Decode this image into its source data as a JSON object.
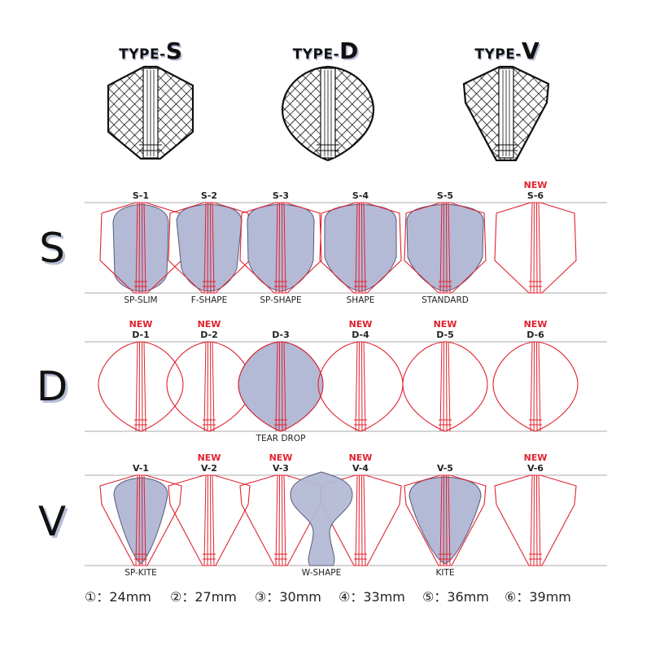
{
  "types": [
    {
      "prefix": "TYPE-",
      "letter": "S"
    },
    {
      "prefix": "TYPE-",
      "letter": "D"
    },
    {
      "prefix": "TYPE-",
      "letter": "V"
    }
  ],
  "rows": [
    {
      "letter": "S",
      "cells": [
        {
          "id": "S-1",
          "new": false,
          "name": "SP-SLIM",
          "fill": "sp-slim"
        },
        {
          "id": "S-2",
          "new": false,
          "name": "F-SHAPE",
          "fill": "f-shape"
        },
        {
          "id": "S-3",
          "new": false,
          "name": "SP-SHAPE",
          "fill": "sp-shape"
        },
        {
          "id": "S-4",
          "new": false,
          "name": "SHAPE",
          "fill": "shape"
        },
        {
          "id": "S-5",
          "new": false,
          "name": "STANDARD",
          "fill": "standard"
        },
        {
          "id": "S-6",
          "new": true,
          "name": "",
          "fill": null
        }
      ]
    },
    {
      "letter": "D",
      "cells": [
        {
          "id": "D-1",
          "new": true,
          "name": "",
          "fill": null
        },
        {
          "id": "D-2",
          "new": true,
          "name": "",
          "fill": null
        },
        {
          "id": "D-3",
          "new": false,
          "name": "TEAR DROP",
          "fill": "tear-drop"
        },
        {
          "id": "D-4",
          "new": true,
          "name": "",
          "fill": null
        },
        {
          "id": "D-5",
          "new": true,
          "name": "",
          "fill": null
        },
        {
          "id": "D-6",
          "new": true,
          "name": "",
          "fill": null
        }
      ]
    },
    {
      "letter": "V",
      "cells": [
        {
          "id": "V-1",
          "new": false,
          "name": "SP-KITE",
          "fill": "sp-kite"
        },
        {
          "id": "V-2",
          "new": true,
          "name": "",
          "fill": null
        },
        {
          "id": "V-3",
          "new": true,
          "name": "W-SHAPE",
          "fill": "w-shape"
        },
        {
          "id": "V-4",
          "new": true,
          "name": "",
          "fill": null
        },
        {
          "id": "V-5",
          "new": false,
          "name": "KITE",
          "fill": "kite"
        },
        {
          "id": "V-6",
          "new": true,
          "name": "",
          "fill": null
        }
      ]
    }
  ],
  "new_label": "NEW",
  "legend": [
    {
      "num": "①",
      "text": "：24mm"
    },
    {
      "num": "②",
      "text": "：27mm"
    },
    {
      "num": "③",
      "text": "：30mm"
    },
    {
      "num": "④",
      "text": "：33mm"
    },
    {
      "num": "⑤",
      "text": "：36mm"
    },
    {
      "num": "⑥",
      "text": "：39mm"
    }
  ],
  "colors": {
    "outline": "#e0222e",
    "fill": "#b4b9d6",
    "fill_stroke": "#555a7a",
    "rule": "#aaaaaa",
    "text": "#222222",
    "new": "#e0222e",
    "shadow": "#b7bfd6"
  }
}
